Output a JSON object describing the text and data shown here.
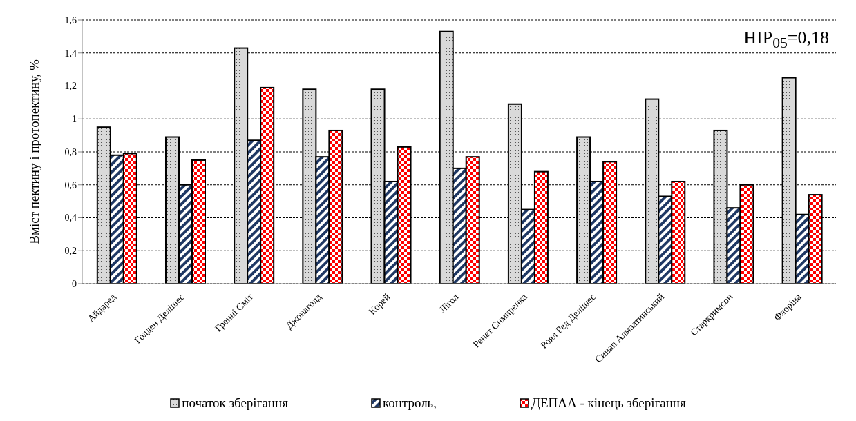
{
  "chart_data": {
    "type": "bar",
    "ylabel": "Вміст пектину і протопектину,  %",
    "categories": [
      "Айдаред",
      "Голден Делішес",
      "Гренні Сміт",
      "Джонаголд",
      "Корей",
      "Лігол",
      "Ренет Симиренка",
      "Роял Ред Делішес",
      "Синап Алмаатинський",
      "Старкримсон",
      "Флоріна"
    ],
    "series": [
      {
        "name": "початок зберігання",
        "color": "#d9d9d9",
        "values": [
          0.95,
          0.89,
          1.43,
          1.18,
          1.18,
          1.53,
          1.09,
          0.89,
          1.12,
          0.93,
          1.25
        ]
      },
      {
        "name": "контроль,",
        "color": "#1f3864",
        "values": [
          0.78,
          0.6,
          0.87,
          0.77,
          0.62,
          0.7,
          0.45,
          0.62,
          0.53,
          0.46,
          0.42
        ]
      },
      {
        "name": "ДЕПАА - кінець зберігання",
        "color": "#ff0000",
        "values": [
          0.79,
          0.75,
          1.19,
          0.93,
          0.83,
          0.77,
          0.68,
          0.74,
          0.62,
          0.6,
          0.54
        ]
      }
    ],
    "ylim": [
      0,
      1.6
    ],
    "yticks": [
      0,
      {
        "value": 0.2,
        "label": "0,2"
      },
      {
        "value": 0.4,
        "label": "0,4"
      },
      {
        "value": 0.6,
        "label": "0,6"
      },
      {
        "value": 0.8,
        "label": "0,8"
      },
      1,
      {
        "value": 1.2,
        "label": "1,2"
      },
      {
        "value": 1.4,
        "label": "1,4"
      },
      {
        "value": 1.6,
        "label": "1,6"
      }
    ],
    "grid": "y",
    "legend": "bottom",
    "annotations": [
      "HIP$_{05}$=0,18"
    ]
  }
}
